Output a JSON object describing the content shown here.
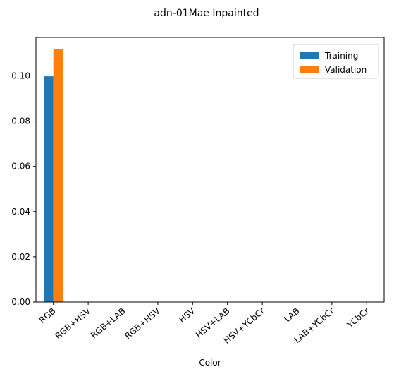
{
  "chart_data": {
    "type": "bar",
    "title": "adn-01Mae Inpainted",
    "xlabel": "Color",
    "ylabel": "",
    "categories": [
      "RGB",
      "RGB+HSV",
      "RGB+LAB",
      "RGB+HSV",
      "HSV",
      "HSV+LAB",
      "HSV+YCbCr",
      "LAB",
      "LAB+YCbCr",
      "YCbCr"
    ],
    "series": [
      {
        "name": "Training",
        "color": "#1f77b4",
        "values": [
          0.0998,
          0,
          0,
          0,
          0,
          0,
          0,
          0,
          0,
          0
        ]
      },
      {
        "name": "Validation",
        "color": "#ff7f0e",
        "values": [
          0.1118,
          0,
          0,
          0,
          0,
          0,
          0,
          0,
          0,
          0
        ]
      }
    ],
    "ylim": [
      0,
      0.117
    ],
    "yticks": [
      0.0,
      0.02,
      0.04,
      0.06,
      0.08,
      0.1
    ],
    "ytick_labels": [
      "0.00",
      "0.02",
      "0.04",
      "0.06",
      "0.08",
      "0.10"
    ],
    "grid": false,
    "legend_position": "top-right"
  }
}
